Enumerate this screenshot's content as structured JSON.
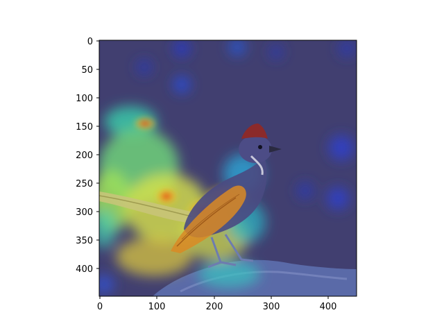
{
  "figure": {
    "x_ticks": [
      "0",
      "100",
      "200",
      "300",
      "400"
    ],
    "y_ticks": [
      "0",
      "50",
      "100",
      "150",
      "200",
      "250",
      "300",
      "350",
      "400"
    ]
  },
  "image": {
    "content": "bird-on-rock-photo-with-attention-heatmap-overlay",
    "background_color": "#413f70",
    "bird_body_color": "#45457a",
    "crest_color": "#8b2a2a",
    "rock_color": "#556aa8",
    "heatmap_colormap": "jet"
  }
}
